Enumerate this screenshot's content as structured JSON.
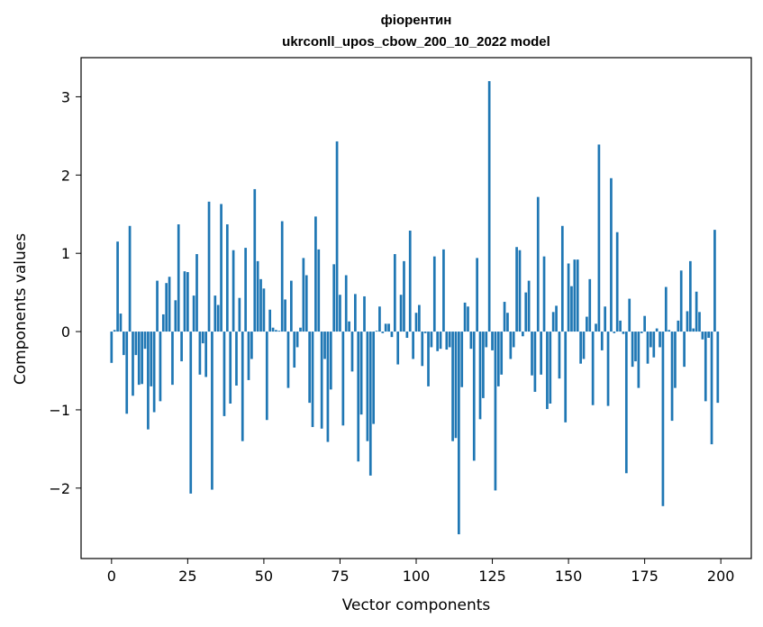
{
  "chart_data": {
    "type": "bar",
    "title": "фіорентин",
    "subtitle": "ukrconll_upos_cbow_200_10_2022 model",
    "xlabel": "Vector components",
    "ylabel": "Components values",
    "xlim": [
      -10,
      210
    ],
    "ylim": [
      -2.9,
      3.5
    ],
    "xticks": [
      0,
      25,
      50,
      75,
      100,
      125,
      150,
      175,
      200
    ],
    "yticks": [
      -2,
      -1,
      0,
      1,
      2,
      3
    ],
    "bar_color": "#1f77b4",
    "grid": false,
    "x": [
      0,
      1,
      2,
      3,
      4,
      5,
      6,
      7,
      8,
      9,
      10,
      11,
      12,
      13,
      14,
      15,
      16,
      17,
      18,
      19,
      20,
      21,
      22,
      23,
      24,
      25,
      26,
      27,
      28,
      29,
      30,
      31,
      32,
      33,
      34,
      35,
      36,
      37,
      38,
      39,
      40,
      41,
      42,
      43,
      44,
      45,
      46,
      47,
      48,
      49,
      50,
      51,
      52,
      53,
      54,
      55,
      56,
      57,
      58,
      59,
      60,
      61,
      62,
      63,
      64,
      65,
      66,
      67,
      68,
      69,
      70,
      71,
      72,
      73,
      74,
      75,
      76,
      77,
      78,
      79,
      80,
      81,
      82,
      83,
      84,
      85,
      86,
      87,
      88,
      89,
      90,
      91,
      92,
      93,
      94,
      95,
      96,
      97,
      98,
      99,
      100,
      101,
      102,
      103,
      104,
      105,
      106,
      107,
      108,
      109,
      110,
      111,
      112,
      113,
      114,
      115,
      116,
      117,
      118,
      119,
      120,
      121,
      122,
      123,
      124,
      125,
      126,
      127,
      128,
      129,
      130,
      131,
      132,
      133,
      134,
      135,
      136,
      137,
      138,
      139,
      140,
      141,
      142,
      143,
      144,
      145,
      146,
      147,
      148,
      149,
      150,
      151,
      152,
      153,
      154,
      155,
      156,
      157,
      158,
      159,
      160,
      161,
      162,
      163,
      164,
      165,
      166,
      167,
      168,
      169,
      170,
      171,
      172,
      173,
      174,
      175,
      176,
      177,
      178,
      179,
      180,
      181,
      182,
      183,
      184,
      185,
      186,
      187,
      188,
      189,
      190,
      191,
      192,
      193,
      194,
      195,
      196,
      197,
      198,
      199
    ],
    "values": [
      -0.4,
      0.02,
      1.15,
      0.23,
      -0.3,
      -1.05,
      1.35,
      -0.82,
      -0.3,
      -0.68,
      -0.67,
      -0.22,
      -1.25,
      -0.7,
      -1.03,
      0.65,
      -0.89,
      0.22,
      0.62,
      0.7,
      -0.68,
      0.4,
      1.37,
      -0.38,
      0.77,
      0.76,
      -2.07,
      0.46,
      0.99,
      -0.55,
      -0.15,
      -0.58,
      1.66,
      -2.02,
      0.46,
      0.34,
      1.63,
      -1.08,
      1.37,
      -0.92,
      1.04,
      -0.69,
      0.43,
      -1.4,
      1.07,
      -0.62,
      -0.35,
      1.82,
      0.9,
      0.67,
      0.55,
      -1.13,
      0.28,
      0.05,
      0.02,
      0.01,
      1.41,
      0.41,
      -0.72,
      0.65,
      -0.46,
      -0.2,
      0.05,
      0.94,
      0.72,
      -0.91,
      -1.22,
      1.47,
      1.05,
      -1.24,
      -0.35,
      -1.41,
      -0.74,
      0.86,
      2.43,
      0.47,
      -1.2,
      0.72,
      0.13,
      -0.51,
      0.48,
      -1.66,
      -1.06,
      0.45,
      -1.4,
      -1.84,
      -1.18,
      0.01,
      0.32,
      -0.02,
      0.1,
      0.1,
      -0.07,
      0.99,
      -0.42,
      0.47,
      0.9,
      -0.08,
      1.29,
      -0.35,
      0.24,
      0.34,
      -0.44,
      -0.02,
      -0.7,
      -0.2,
      0.96,
      -0.25,
      -0.22,
      1.05,
      -0.23,
      -0.2,
      -1.4,
      -1.36,
      -2.59,
      -0.71,
      0.37,
      0.32,
      -0.22,
      -1.65,
      0.94,
      -1.12,
      -0.85,
      -0.2,
      3.2,
      -0.24,
      -2.03,
      -0.7,
      -0.55,
      0.38,
      0.24,
      -0.35,
      -0.2,
      1.08,
      1.04,
      -0.06,
      0.5,
      0.65,
      -0.56,
      -0.77,
      1.72,
      -0.55,
      0.96,
      -0.99,
      -0.92,
      0.25,
      0.33,
      -0.6,
      1.35,
      -1.16,
      0.87,
      0.58,
      0.92,
      0.92,
      -0.41,
      -0.35,
      0.19,
      0.67,
      -0.94,
      0.1,
      2.39,
      -0.24,
      0.32,
      -0.95,
      1.96,
      -0.02,
      1.27,
      0.14,
      -0.03,
      -1.81,
      0.42,
      -0.45,
      -0.38,
      -0.72,
      -0.02,
      0.2,
      -0.41,
      -0.2,
      -0.33,
      0.04,
      -0.2,
      -2.23,
      0.57,
      0.02,
      -1.14,
      -0.72,
      0.14,
      0.78,
      -0.45,
      0.26,
      0.9,
      0.04,
      0.51,
      0.25,
      -0.1,
      -0.89,
      -0.08,
      -1.44,
      1.3,
      -0.91
    ]
  }
}
